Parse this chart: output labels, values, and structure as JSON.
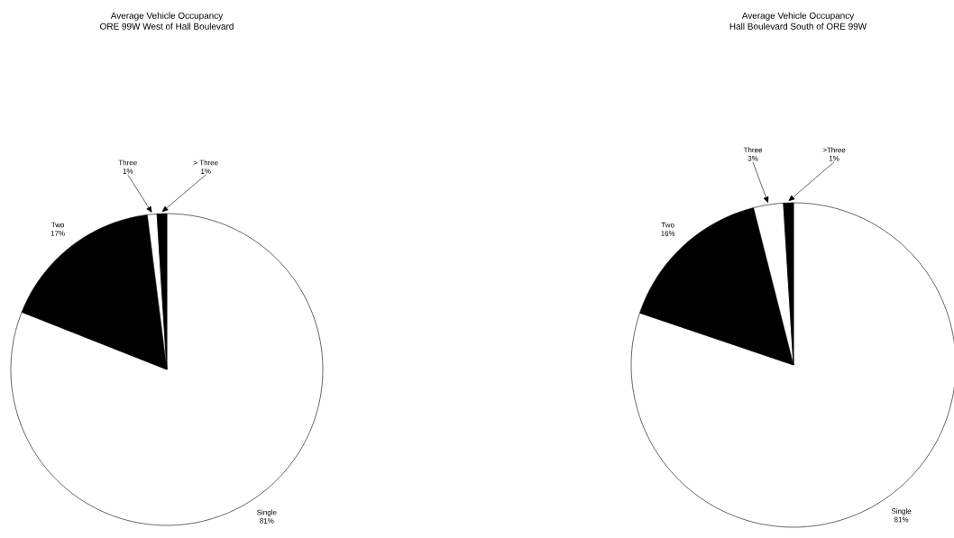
{
  "chart_data": [
    {
      "type": "pie",
      "title": "Average Vehicle Occupancy",
      "subtitle": "ORE 99W West of Hall Boulevard",
      "categories": [
        "Single",
        "Two",
        "Three",
        "> Three"
      ],
      "values": [
        81,
        17,
        1,
        1
      ],
      "value_labels": [
        "81%",
        "17%",
        "1%",
        "1%"
      ],
      "colors": [
        "#ffffff",
        "#000000",
        "#ffffff",
        "#000000"
      ]
    },
    {
      "type": "pie",
      "title": "Average Vehicle Occupancy",
      "subtitle": "Hall Boulevard South of ORE 99W",
      "categories": [
        "Single",
        "Two",
        "Three",
        ">Three"
      ],
      "values": [
        81,
        16,
        3,
        1
      ],
      "value_labels": [
        "81%",
        "16%",
        "3%",
        "1%"
      ],
      "colors": [
        "#ffffff",
        "#000000",
        "#ffffff",
        "#000000"
      ]
    }
  ]
}
